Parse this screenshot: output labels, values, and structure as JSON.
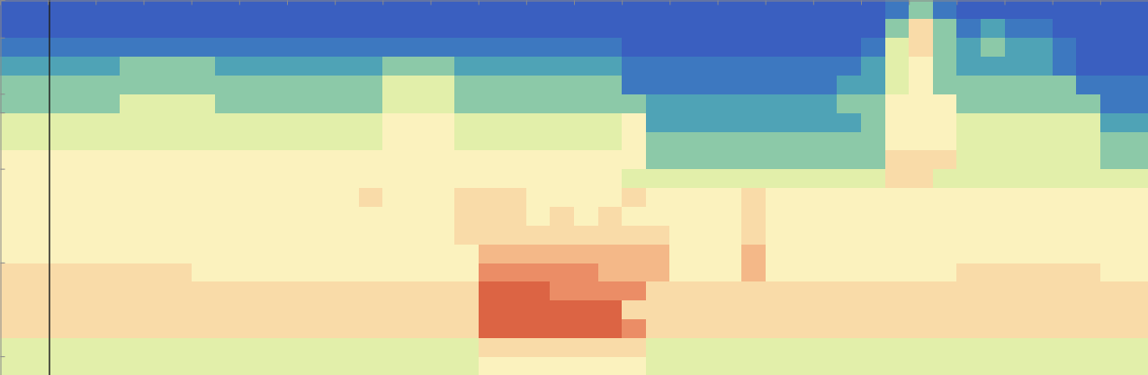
{
  "chart_data": {
    "type": "heatmap",
    "tick_labels": false,
    "xlim": [
      0,
      48
    ],
    "xticks": [
      0,
      2,
      4,
      6,
      8,
      10,
      12,
      14,
      16,
      18,
      20,
      22,
      24,
      26,
      28,
      30,
      32,
      34,
      36,
      38,
      40,
      42,
      44,
      46,
      48
    ],
    "ylim": [
      0,
      20
    ],
    "yticks": [
      1,
      6,
      11,
      14,
      15,
      18,
      20
    ],
    "color_range": [
      0,
      10
    ],
    "z": [
      [
        4,
        4,
        4,
        4,
        4,
        4,
        4,
        4,
        4,
        4,
        4,
        4,
        4,
        4,
        4,
        4,
        4,
        4,
        4,
        4,
        5,
        5,
        5,
        5,
        5,
        5,
        5,
        4,
        4,
        4,
        4,
        4,
        4,
        4,
        4,
        4,
        4,
        4,
        4,
        4,
        4,
        4,
        4,
        4,
        4,
        4,
        4,
        4
      ],
      [
        4,
        4,
        4,
        4,
        4,
        4,
        4,
        4,
        4,
        4,
        4,
        4,
        4,
        4,
        4,
        4,
        4,
        4,
        4,
        4,
        6,
        6,
        6,
        6,
        6,
        6,
        6,
        4,
        4,
        4,
        4,
        4,
        4,
        4,
        4,
        4,
        4,
        4,
        4,
        4,
        4,
        4,
        4,
        4,
        4,
        4,
        4,
        4
      ],
      [
        6,
        6,
        6,
        6,
        6,
        6,
        6,
        6,
        6,
        6,
        6,
        6,
        6,
        6,
        6,
        6,
        6,
        6,
        6,
        6,
        9,
        9,
        9,
        9,
        9,
        9,
        8,
        6,
        6,
        6,
        6,
        6,
        6,
        6,
        6,
        6,
        6,
        6,
        6,
        6,
        6,
        6,
        6,
        6,
        6,
        6,
        6,
        6
      ],
      [
        6,
        6,
        6,
        6,
        6,
        6,
        6,
        6,
        6,
        6,
        6,
        6,
        6,
        6,
        6,
        6,
        6,
        6,
        6,
        6,
        9,
        9,
        9,
        9,
        9,
        9,
        6,
        6,
        6,
        6,
        6,
        6,
        6,
        6,
        6,
        6,
        6,
        6,
        6,
        6,
        6,
        6,
        6,
        6,
        6,
        6,
        6,
        6
      ],
      [
        6,
        6,
        6,
        6,
        6,
        6,
        6,
        6,
        6,
        6,
        6,
        6,
        6,
        6,
        6,
        6,
        6,
        6,
        6,
        6,
        9,
        9,
        9,
        8,
        8,
        8,
        8,
        6,
        6,
        6,
        6,
        6,
        6,
        6,
        6,
        6,
        6,
        6,
        6,
        6,
        6,
        6,
        6,
        6,
        6,
        6,
        6,
        6
      ],
      [
        6,
        6,
        6,
        6,
        6,
        6,
        6,
        6,
        5,
        5,
        5,
        5,
        5,
        5,
        5,
        5,
        5,
        5,
        5,
        5,
        8,
        8,
        8,
        8,
        8,
        7,
        7,
        7,
        5,
        5,
        5,
        7,
        5,
        5,
        5,
        5,
        5,
        5,
        5,
        5,
        6,
        6,
        6,
        6,
        6,
        6,
        5,
        5
      ],
      [
        5,
        5,
        5,
        5,
        5,
        5,
        5,
        5,
        5,
        5,
        5,
        5,
        5,
        5,
        5,
        5,
        5,
        5,
        5,
        5,
        7,
        7,
        7,
        7,
        7,
        7,
        7,
        7,
        5,
        5,
        5,
        7,
        5,
        5,
        5,
        5,
        5,
        5,
        5,
        5,
        5,
        5,
        5,
        5,
        5,
        5,
        5,
        5
      ],
      [
        5,
        5,
        5,
        5,
        5,
        5,
        5,
        5,
        5,
        5,
        5,
        5,
        5,
        5,
        5,
        5,
        5,
        5,
        5,
        6,
        6,
        6,
        6,
        6,
        6,
        6,
        6,
        6,
        5,
        5,
        5,
        6,
        5,
        5,
        5,
        5,
        5,
        5,
        5,
        5,
        5,
        5,
        5,
        5,
        5,
        5,
        5,
        5
      ],
      [
        5,
        5,
        5,
        5,
        5,
        5,
        5,
        5,
        5,
        5,
        5,
        5,
        5,
        5,
        5,
        5,
        5,
        5,
        5,
        6,
        6,
        6,
        5,
        6,
        5,
        6,
        5,
        5,
        5,
        5,
        5,
        6,
        5,
        5,
        5,
        5,
        5,
        5,
        5,
        5,
        5,
        5,
        5,
        5,
        5,
        5,
        5,
        5
      ],
      [
        5,
        5,
        5,
        5,
        5,
        5,
        5,
        5,
        5,
        5,
        5,
        5,
        5,
        5,
        5,
        6,
        5,
        5,
        5,
        6,
        6,
        6,
        5,
        5,
        5,
        5,
        6,
        5,
        5,
        5,
        5,
        6,
        5,
        5,
        5,
        5,
        5,
        5,
        5,
        5,
        5,
        5,
        5,
        5,
        5,
        5,
        5,
        5
      ],
      [
        5,
        5,
        5,
        5,
        5,
        5,
        5,
        5,
        5,
        5,
        5,
        5,
        5,
        5,
        5,
        5,
        5,
        5,
        5,
        5,
        5,
        5,
        5,
        5,
        5,
        5,
        4,
        4,
        4,
        4,
        4,
        4,
        4,
        4,
        4,
        4,
        4,
        6,
        6,
        4,
        4,
        4,
        4,
        4,
        4,
        4,
        4,
        4
      ],
      [
        5,
        5,
        5,
        5,
        5,
        5,
        5,
        5,
        5,
        5,
        5,
        5,
        5,
        5,
        5,
        5,
        5,
        5,
        5,
        5,
        5,
        5,
        5,
        5,
        5,
        5,
        5,
        3,
        3,
        3,
        3,
        3,
        3,
        3,
        3,
        3,
        3,
        6,
        6,
        6,
        4,
        4,
        4,
        4,
        4,
        4,
        3,
        3
      ],
      [
        4,
        4,
        4,
        4,
        4,
        4,
        4,
        4,
        4,
        4,
        4,
        4,
        4,
        4,
        4,
        4,
        5,
        5,
        5,
        4,
        4,
        4,
        4,
        4,
        4,
        4,
        5,
        3,
        3,
        3,
        3,
        3,
        3,
        3,
        3,
        3,
        3,
        5,
        5,
        5,
        4,
        4,
        4,
        4,
        4,
        4,
        3,
        3
      ],
      [
        4,
        4,
        4,
        4,
        4,
        4,
        4,
        4,
        4,
        4,
        4,
        4,
        4,
        4,
        4,
        4,
        5,
        5,
        5,
        4,
        4,
        4,
        4,
        4,
        4,
        4,
        5,
        2,
        2,
        2,
        2,
        2,
        2,
        2,
        2,
        2,
        3,
        5,
        5,
        5,
        4,
        4,
        4,
        4,
        4,
        4,
        2,
        2
      ],
      [
        3,
        3,
        3,
        3,
        3,
        4,
        4,
        4,
        4,
        3,
        3,
        3,
        3,
        3,
        3,
        3,
        4,
        4,
        4,
        3,
        3,
        3,
        3,
        3,
        3,
        3,
        3,
        2,
        2,
        2,
        2,
        2,
        2,
        2,
        2,
        3,
        3,
        5,
        5,
        5,
        3,
        3,
        3,
        3,
        3,
        3,
        1,
        1
      ],
      [
        3,
        3,
        3,
        3,
        3,
        3,
        3,
        3,
        3,
        3,
        3,
        3,
        3,
        3,
        3,
        3,
        4,
        4,
        4,
        3,
        3,
        3,
        3,
        3,
        3,
        3,
        1,
        1,
        1,
        1,
        1,
        1,
        1,
        1,
        1,
        2,
        2,
        4,
        5,
        3,
        3,
        3,
        3,
        3,
        3,
        1,
        1,
        1
      ],
      [
        2,
        2,
        2,
        2,
        2,
        3,
        3,
        3,
        3,
        2,
        2,
        2,
        2,
        2,
        2,
        2,
        3,
        3,
        3,
        2,
        2,
        2,
        2,
        2,
        2,
        2,
        1,
        1,
        1,
        1,
        1,
        1,
        1,
        1,
        1,
        1,
        2,
        4,
        5,
        3,
        2,
        2,
        2,
        2,
        1,
        0,
        0,
        0
      ],
      [
        1,
        1,
        1,
        1,
        1,
        1,
        1,
        1,
        1,
        1,
        1,
        1,
        1,
        1,
        1,
        1,
        1,
        1,
        1,
        1,
        1,
        1,
        1,
        1,
        1,
        1,
        0,
        0,
        0,
        0,
        0,
        0,
        0,
        0,
        0,
        0,
        1,
        4,
        6,
        3,
        2,
        3,
        2,
        2,
        1,
        0,
        0,
        0
      ],
      [
        0,
        0,
        0,
        0,
        0,
        0,
        0,
        0,
        0,
        0,
        0,
        0,
        0,
        0,
        0,
        0,
        0,
        0,
        0,
        0,
        0,
        0,
        0,
        0,
        0,
        0,
        0,
        0,
        0,
        0,
        0,
        0,
        0,
        0,
        0,
        0,
        0,
        3,
        6,
        3,
        1,
        2,
        1,
        1,
        0,
        0,
        0,
        0
      ],
      [
        0,
        0,
        0,
        0,
        0,
        0,
        0,
        0,
        0,
        0,
        0,
        0,
        0,
        0,
        0,
        0,
        0,
        0,
        0,
        0,
        0,
        0,
        0,
        0,
        0,
        0,
        0,
        0,
        0,
        0,
        0,
        0,
        0,
        0,
        0,
        0,
        0,
        1,
        3,
        1,
        0,
        0,
        0,
        0,
        0,
        0,
        0,
        0
      ]
    ]
  }
}
